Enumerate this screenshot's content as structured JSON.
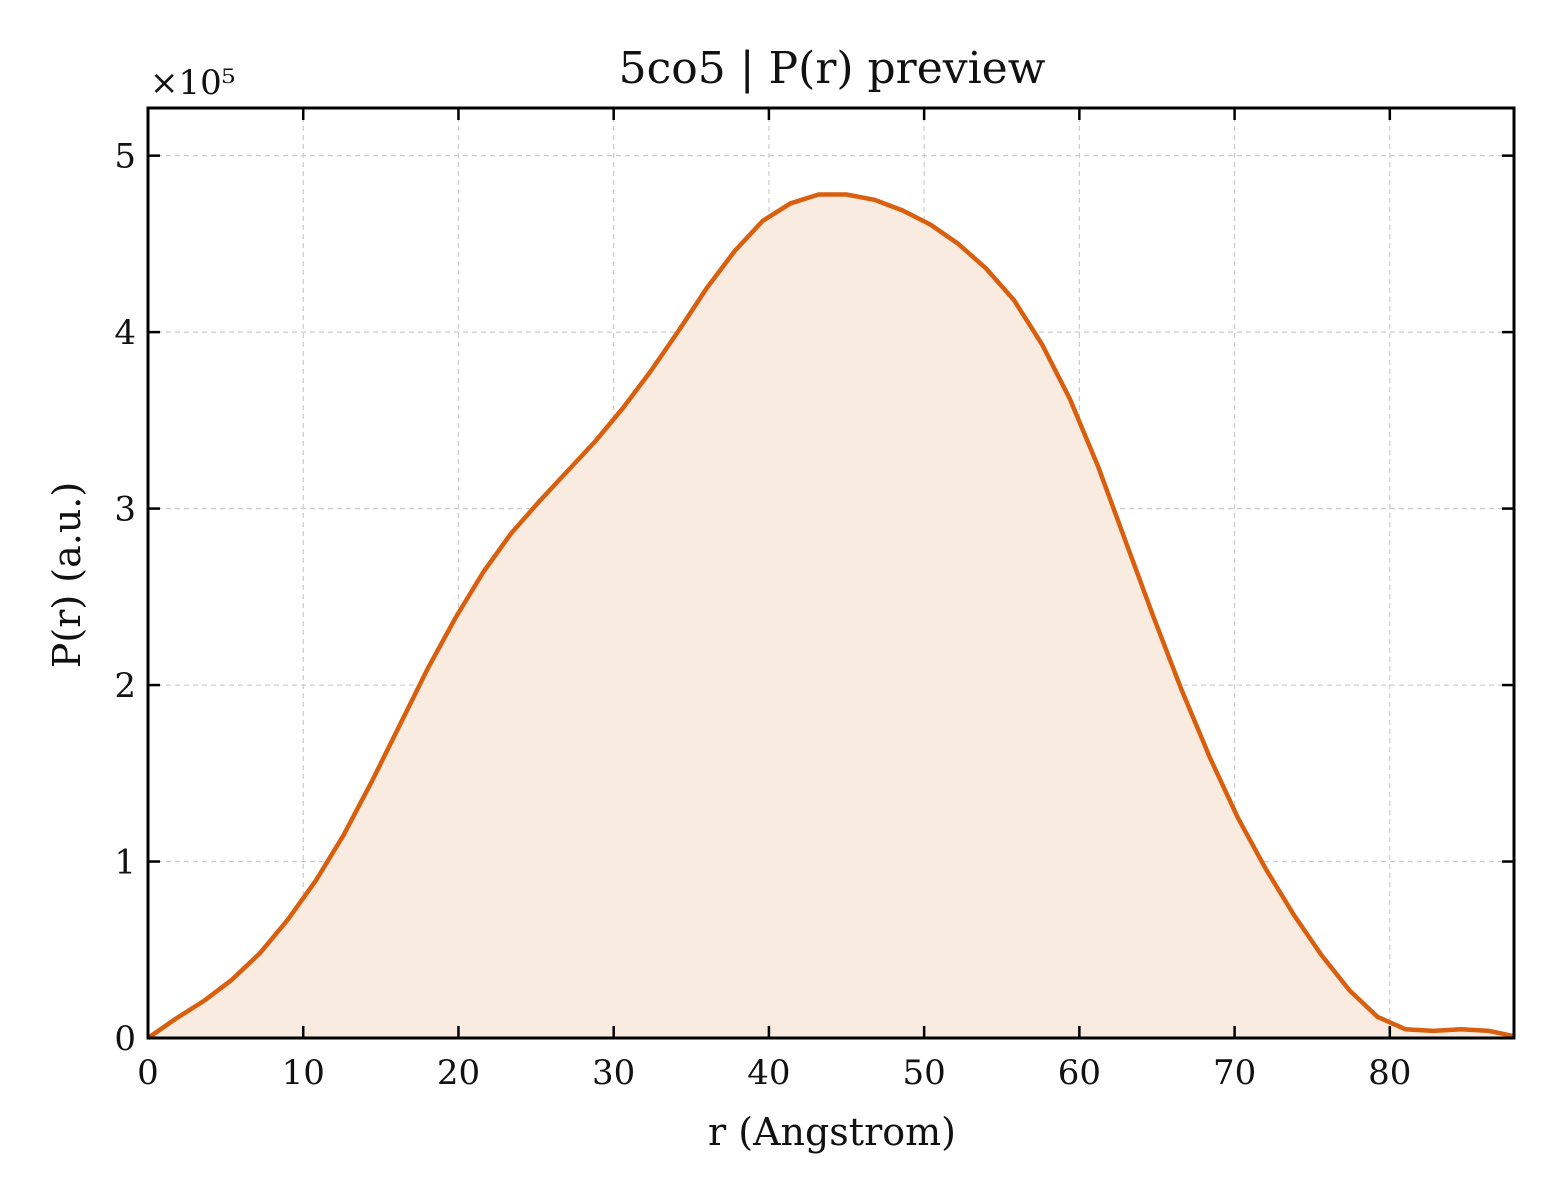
{
  "chart_data": {
    "type": "area",
    "title": "5co5 | P(r) preview",
    "xlabel": "r (Angstrom)",
    "ylabel": "P(r) (a.u.)",
    "y_offset_label": "×10⁵",
    "y_scale": 100000,
    "xlim": [
      0,
      88
    ],
    "ylim": [
      0,
      5.27
    ],
    "x_ticks": [
      0,
      10,
      20,
      30,
      40,
      50,
      60,
      70,
      80
    ],
    "x_tick_labels": [
      "0",
      "10",
      "20",
      "30",
      "40",
      "50",
      "60",
      "70",
      "80"
    ],
    "y_ticks": [
      0,
      1,
      2,
      3,
      4,
      5
    ],
    "y_tick_labels": [
      "0",
      "1",
      "2",
      "3",
      "4",
      "5"
    ],
    "grid": true,
    "line_color": "#d95f0e",
    "fill_color": "#f9ebe0",
    "series": [
      {
        "x": [
          0,
          1.8,
          3.6,
          5.4,
          7.2,
          9.0,
          10.8,
          12.6,
          14.4,
          16.2,
          18.0,
          19.8,
          21.6,
          23.4,
          25.2,
          27.0,
          28.8,
          30.6,
          32.4,
          34.2,
          36.0,
          37.8,
          39.6,
          41.4,
          43.2,
          45.0,
          46.8,
          48.6,
          50.4,
          52.2,
          54.0,
          55.8,
          57.6,
          59.4,
          61.2,
          63.0,
          64.8,
          66.6,
          68.4,
          70.2,
          72.0,
          73.8,
          75.6,
          77.4,
          79.2,
          81.0,
          82.8,
          84.6,
          86.4,
          88.0
        ],
        "y": [
          0.0,
          0.11,
          0.21,
          0.33,
          0.48,
          0.67,
          0.89,
          1.15,
          1.45,
          1.77,
          2.09,
          2.38,
          2.64,
          2.86,
          3.04,
          3.21,
          3.38,
          3.57,
          3.78,
          4.01,
          4.25,
          4.46,
          4.63,
          4.73,
          4.78,
          4.78,
          4.75,
          4.69,
          4.61,
          4.5,
          4.36,
          4.18,
          3.93,
          3.62,
          3.24,
          2.81,
          2.38,
          1.97,
          1.59,
          1.25,
          0.96,
          0.7,
          0.47,
          0.27,
          0.12,
          0.05,
          0.04,
          0.05,
          0.04,
          0.01
        ]
      }
    ]
  }
}
